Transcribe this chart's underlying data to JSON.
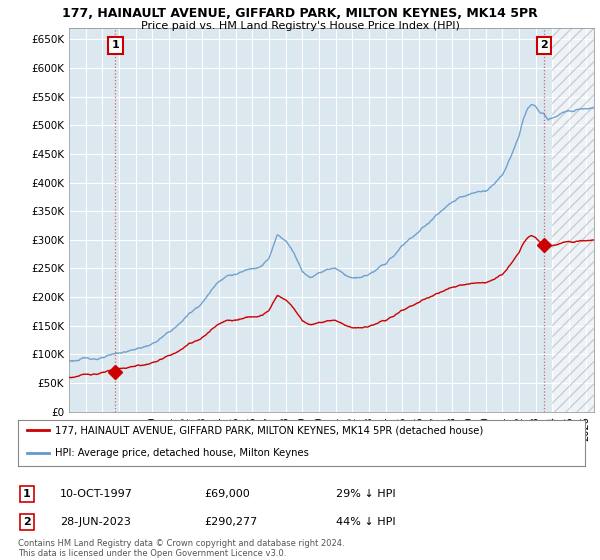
{
  "title_line1": "177, HAINAULT AVENUE, GIFFARD PARK, MILTON KEYNES, MK14 5PR",
  "title_line2": "Price paid vs. HM Land Registry's House Price Index (HPI)",
  "ylim": [
    0,
    670000
  ],
  "yticks": [
    0,
    50000,
    100000,
    150000,
    200000,
    250000,
    300000,
    350000,
    400000,
    450000,
    500000,
    550000,
    600000,
    650000
  ],
  "ytick_labels": [
    "£0",
    "£50K",
    "£100K",
    "£150K",
    "£200K",
    "£250K",
    "£300K",
    "£350K",
    "£400K",
    "£450K",
    "£500K",
    "£550K",
    "£600K",
    "£650K"
  ],
  "sale1_x": 1997.78,
  "sale1_y": 69000,
  "sale1_date": "10-OCT-1997",
  "sale1_price": "£69,000",
  "sale1_hpi": "29% ↓ HPI",
  "sale2_x": 2023.49,
  "sale2_y": 290277,
  "sale2_date": "28-JUN-2023",
  "sale2_price": "£290,277",
  "sale2_hpi": "44% ↓ HPI",
  "legend_line1": "177, HAINAULT AVENUE, GIFFARD PARK, MILTON KEYNES, MK14 5PR (detached house)",
  "legend_line2": "HPI: Average price, detached house, Milton Keynes",
  "footer": "Contains HM Land Registry data © Crown copyright and database right 2024.\nThis data is licensed under the Open Government Licence v3.0.",
  "line_color_red": "#cc0000",
  "line_color_blue": "#6699cc",
  "marker_color": "#cc0000",
  "grid_color": "#c8d8e8",
  "bg_color": "#ffffff",
  "plot_bg": "#dce8f0",
  "hatch_start": 2024.0,
  "xlim_start": 1995.0,
  "xlim_end": 2026.5
}
